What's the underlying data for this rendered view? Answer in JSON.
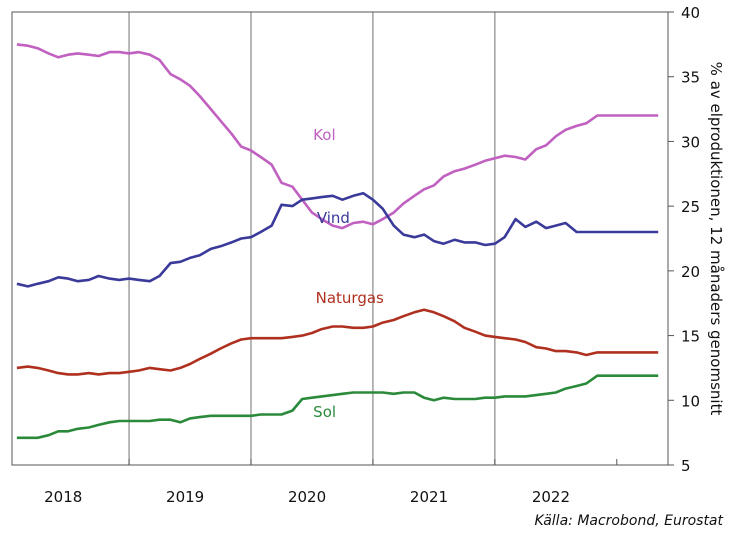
{
  "chart_data": {
    "type": "line",
    "ylabel": "% av elproduktionen, 12 månaders genomsnitt",
    "ylim": [
      5,
      40
    ],
    "yticks": [
      5,
      10,
      15,
      20,
      25,
      30,
      35,
      40
    ],
    "xlim": [
      2017.58,
      2022.96
    ],
    "xticks": [
      {
        "label": "2018",
        "x": 2018.0
      },
      {
        "label": "2019",
        "x": 2019.0
      },
      {
        "label": "2020",
        "x": 2020.0
      },
      {
        "label": "2021",
        "x": 2021.0
      },
      {
        "label": "2022",
        "x": 2022.0
      }
    ],
    "grid": "vertical",
    "x": [
      2017.62,
      2017.71,
      2017.79,
      2017.88,
      2017.96,
      2018.04,
      2018.12,
      2018.21,
      2018.29,
      2018.38,
      2018.46,
      2018.54,
      2018.62,
      2018.71,
      2018.79,
      2018.88,
      2018.96,
      2019.04,
      2019.12,
      2019.21,
      2019.29,
      2019.38,
      2019.46,
      2019.54,
      2019.62,
      2019.71,
      2019.79,
      2019.88,
      2019.96,
      2020.04,
      2020.12,
      2020.21,
      2020.29,
      2020.38,
      2020.46,
      2020.54,
      2020.62,
      2020.71,
      2020.79,
      2020.88,
      2020.96,
      2021.04,
      2021.12,
      2021.21,
      2021.29,
      2021.38,
      2021.46,
      2021.54,
      2021.62,
      2021.71,
      2021.79,
      2021.88,
      2021.96,
      2022.04,
      2022.12,
      2022.21,
      2022.29,
      2022.38,
      2022.46,
      2022.54,
      2022.62,
      2022.71,
      2022.79,
      2022.88
    ],
    "series": [
      {
        "name": "Kol",
        "color": "#c060c0",
        "label_at": [
          2020.05,
          30.1
        ],
        "values": [
          37.5,
          37.4,
          37.2,
          36.8,
          36.5,
          36.7,
          36.8,
          36.7,
          36.6,
          36.9,
          36.9,
          36.8,
          36.9,
          36.7,
          36.3,
          35.2,
          34.8,
          34.3,
          33.5,
          32.5,
          31.6,
          30.6,
          29.6,
          29.3,
          28.8,
          28.2,
          26.8,
          26.5,
          25.5,
          24.5,
          24.0,
          23.5,
          23.3,
          23.7,
          23.8,
          23.6,
          24.0,
          24.5,
          25.2,
          25.8,
          26.3,
          26.6,
          27.3,
          27.7,
          27.9,
          28.2,
          28.5,
          28.7,
          28.9,
          28.8,
          28.6,
          29.4,
          29.7,
          30.4,
          30.9,
          31.2,
          31.4,
          32.0,
          32.0,
          32.0,
          32.0,
          32.0,
          32.0,
          32.0
        ]
      },
      {
        "name": "Vind",
        "color": "#3a3a9a",
        "label_at": [
          2020.08,
          23.7
        ],
        "values": [
          19.0,
          18.8,
          19.0,
          19.2,
          19.5,
          19.4,
          19.2,
          19.3,
          19.6,
          19.4,
          19.3,
          19.4,
          19.3,
          19.2,
          19.6,
          20.6,
          20.7,
          21.0,
          21.2,
          21.7,
          21.9,
          22.2,
          22.5,
          22.6,
          23.0,
          23.5,
          25.1,
          25.0,
          25.5,
          25.6,
          25.7,
          25.8,
          25.5,
          25.8,
          26.0,
          25.5,
          24.8,
          23.5,
          22.8,
          22.6,
          22.8,
          22.3,
          22.1,
          22.4,
          22.2,
          22.2,
          22.0,
          22.1,
          22.6,
          24.0,
          23.4,
          23.8,
          23.3,
          23.5,
          23.7,
          23.0,
          23.0,
          23.0,
          23.0,
          23.0,
          23.0,
          23.0,
          23.0,
          23.0
        ]
      },
      {
        "name": "Naturgas",
        "color": "#b03020",
        "label_at": [
          2020.07,
          17.5
        ],
        "values": [
          12.5,
          12.6,
          12.5,
          12.3,
          12.1,
          12.0,
          12.0,
          12.1,
          12.0,
          12.1,
          12.1,
          12.2,
          12.3,
          12.5,
          12.4,
          12.3,
          12.5,
          12.8,
          13.2,
          13.6,
          14.0,
          14.4,
          14.7,
          14.8,
          14.8,
          14.8,
          14.8,
          14.9,
          15.0,
          15.2,
          15.5,
          15.7,
          15.7,
          15.6,
          15.6,
          15.7,
          16.0,
          16.2,
          16.5,
          16.8,
          17.0,
          16.8,
          16.5,
          16.1,
          15.6,
          15.3,
          15.0,
          14.9,
          14.8,
          14.7,
          14.5,
          14.1,
          14.0,
          13.8,
          13.8,
          13.7,
          13.5,
          13.7,
          13.7,
          13.7,
          13.7,
          13.7,
          13.7,
          13.7
        ]
      },
      {
        "name": "Sol",
        "color": "#2a8a3a",
        "label_at": [
          2020.05,
          8.7
        ],
        "values": [
          7.1,
          7.1,
          7.1,
          7.3,
          7.6,
          7.6,
          7.8,
          7.9,
          8.1,
          8.3,
          8.4,
          8.4,
          8.4,
          8.4,
          8.5,
          8.5,
          8.3,
          8.6,
          8.7,
          8.8,
          8.8,
          8.8,
          8.8,
          8.8,
          8.9,
          8.9,
          8.9,
          9.2,
          10.1,
          10.2,
          10.3,
          10.4,
          10.5,
          10.6,
          10.6,
          10.6,
          10.6,
          10.5,
          10.6,
          10.6,
          10.2,
          10.0,
          10.2,
          10.1,
          10.1,
          10.1,
          10.2,
          10.2,
          10.3,
          10.3,
          10.3,
          10.4,
          10.5,
          10.6,
          10.9,
          11.1,
          11.3,
          11.9,
          11.9,
          11.9,
          11.9,
          11.9,
          11.9,
          11.9
        ]
      }
    ]
  },
  "source": "Källa: Macrobond, Eurostat"
}
